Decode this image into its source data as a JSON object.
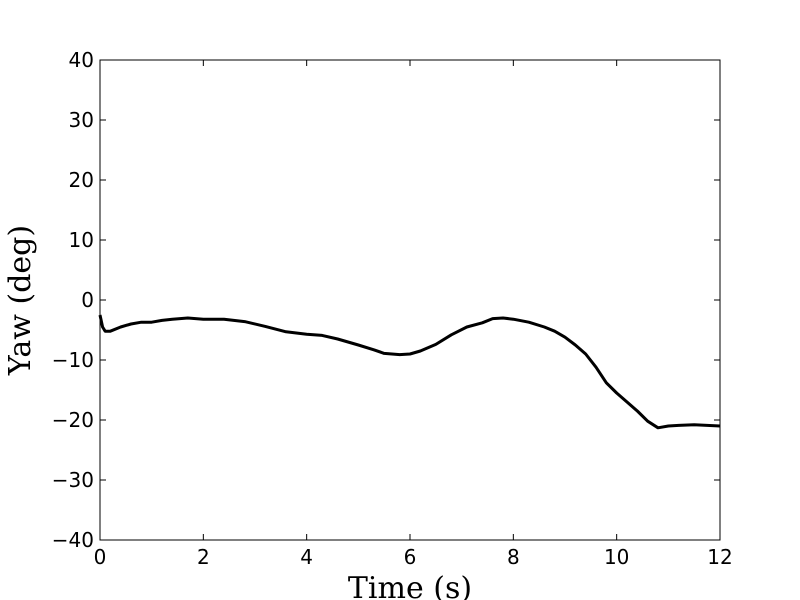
{
  "chart_data": {
    "type": "line",
    "xlabel": "Time (s)",
    "ylabel": "Yaw (deg)",
    "x": [
      0,
      0.05,
      0.1,
      0.2,
      0.4,
      0.6,
      0.8,
      1.0,
      1.2,
      1.4,
      1.7,
      2.0,
      2.4,
      2.8,
      3.2,
      3.6,
      4.0,
      4.3,
      4.6,
      5.0,
      5.3,
      5.5,
      5.8,
      6.0,
      6.2,
      6.5,
      6.8,
      7.1,
      7.4,
      7.6,
      7.8,
      8.0,
      8.3,
      8.6,
      8.8,
      9.0,
      9.2,
      9.4,
      9.6,
      9.8,
      10.0,
      10.2,
      10.4,
      10.6,
      10.8,
      11.0,
      11.2,
      11.5,
      12.0
    ],
    "series": [
      {
        "color": "#000000",
        "values": [
          -2.5,
          -4.5,
          -5.2,
          -5.2,
          -4.5,
          -4.0,
          -3.7,
          -3.7,
          -3.4,
          -3.2,
          -3.0,
          -3.2,
          -3.2,
          -3.6,
          -4.4,
          -5.3,
          -5.7,
          -5.9,
          -6.5,
          -7.5,
          -8.3,
          -8.9,
          -9.1,
          -9.0,
          -8.5,
          -7.4,
          -5.8,
          -4.5,
          -3.8,
          -3.1,
          -3.0,
          -3.2,
          -3.7,
          -4.5,
          -5.2,
          -6.2,
          -7.5,
          -9.0,
          -11.2,
          -13.8,
          -15.5,
          -17.0,
          -18.5,
          -20.2,
          -21.3,
          -21.0,
          -20.9,
          -20.8,
          -21.0
        ]
      }
    ],
    "xlim": [
      0,
      12
    ],
    "xticks": [
      0,
      2,
      4,
      6,
      8,
      10,
      12
    ],
    "ylim": [
      -40,
      40
    ],
    "yticks": [
      {
        "value": -40,
        "label": "−40"
      },
      {
        "value": -30,
        "label": "−30"
      },
      {
        "value": -20,
        "label": "−20"
      },
      {
        "value": -10,
        "label": "−10"
      },
      0,
      10,
      20,
      30,
      40
    ],
    "grid": false
  }
}
